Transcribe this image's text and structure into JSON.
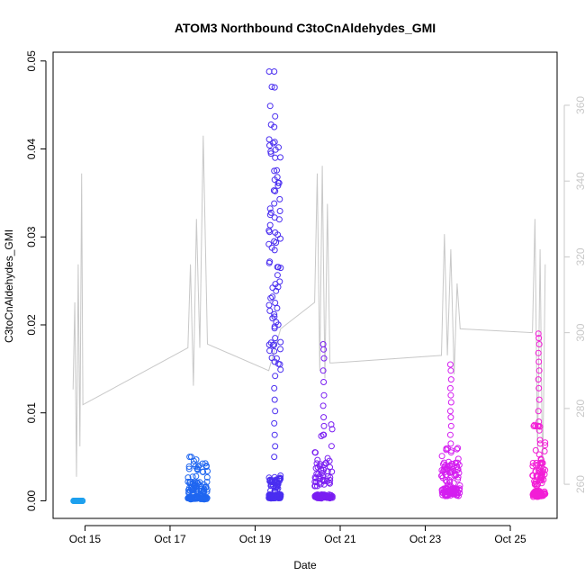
{
  "chart_data": {
    "type": "scatter",
    "title": "ATOM3 Northbound C3toCnAldehydes_GMI",
    "xlabel": "Date",
    "ylabel": "C3toCnAldehydes_GMI",
    "x_tick_labels": [
      "Oct 15",
      "Oct 17",
      "Oct 19",
      "Oct 21",
      "Oct 23",
      "Oct 25"
    ],
    "x_ticks_day": [
      15,
      17,
      19,
      21,
      23,
      25
    ],
    "xlim_day": [
      14.25,
      26.1
    ],
    "ylim": [
      -0.002,
      0.051
    ],
    "y_ticks": [
      "0.00",
      "0.01",
      "0.02",
      "0.03",
      "0.04",
      "0.05"
    ],
    "y2_ticks": [
      "260",
      "280",
      "300",
      "320",
      "340",
      "360"
    ],
    "y2lim": [
      251,
      374
    ],
    "right_axis_color": "#c8c8c8",
    "line_color": "#c8c8c8",
    "series": [
      {
        "color": "#1ea0ee",
        "day_start": 14.72,
        "day_end": 14.95,
        "min": 0.0,
        "max": 0.0002,
        "clusters": [
          [
            0.0,
            40
          ]
        ],
        "outliers": []
      },
      {
        "color": "#1f66f0",
        "day_start": 17.42,
        "day_end": 17.88,
        "min": 0.0,
        "max": 0.005,
        "clusters": [
          [
            0.0003,
            60
          ],
          [
            0.0015,
            40
          ],
          [
            0.003,
            20
          ],
          [
            0.0045,
            12
          ]
        ],
        "outliers": []
      },
      {
        "color": "#4a2ef0",
        "day_start": 19.32,
        "day_end": 19.6,
        "min": 0.0,
        "max": 0.0488,
        "clusters": [
          [
            0.0005,
            80
          ],
          [
            0.002,
            40
          ],
          [
            0.026,
            40
          ],
          [
            0.034,
            25
          ]
        ],
        "outliers": [
          0.0488,
          0.047,
          0.0437,
          0.0425,
          0.0408,
          0.039,
          0.0375,
          0.0365,
          0.0352,
          0.0338,
          0.0322,
          0.0305,
          0.0295,
          0.0285,
          0.0225,
          0.0212,
          0.0198,
          0.0185,
          0.017,
          0.0158,
          0.0142,
          0.0128,
          0.0115,
          0.0102,
          0.0088,
          0.0075,
          0.0062,
          0.005
        ]
      },
      {
        "color": "#7a1ef2",
        "day_start": 20.4,
        "day_end": 20.82,
        "min": 0.0,
        "max": 0.0178,
        "clusters": [
          [
            0.0005,
            70
          ],
          [
            0.003,
            35
          ],
          [
            0.006,
            15
          ]
        ],
        "outliers": [
          0.0178,
          0.0172,
          0.0162,
          0.0148,
          0.0135,
          0.012,
          0.0108,
          0.0095,
          0.0085,
          0.0075
        ]
      },
      {
        "color": "#d41ef0",
        "day_start": 23.38,
        "day_end": 23.82,
        "min": 0.0,
        "max": 0.0155,
        "clusters": [
          [
            0.001,
            70
          ],
          [
            0.003,
            40
          ],
          [
            0.0045,
            20
          ]
        ],
        "outliers": [
          0.0155,
          0.0148,
          0.0138,
          0.0128,
          0.012,
          0.0112,
          0.0102,
          0.0095,
          0.0085,
          0.0075,
          0.0065,
          0.0055
        ]
      },
      {
        "color": "#f21ed6",
        "day_start": 25.52,
        "day_end": 25.82,
        "min": 0.0,
        "max": 0.019,
        "clusters": [
          [
            0.0008,
            70
          ],
          [
            0.003,
            40
          ],
          [
            0.006,
            20
          ]
        ],
        "outliers": [
          0.019,
          0.0185,
          0.0178,
          0.0168,
          0.0158,
          0.0148,
          0.0138,
          0.0128,
          0.0115,
          0.0102,
          0.009,
          0.008
        ]
      }
    ],
    "secondary_line": {
      "days": [
        14.72,
        14.76,
        14.8,
        14.84,
        14.88,
        14.92,
        14.95,
        17.42,
        17.48,
        17.55,
        17.62,
        17.7,
        17.78,
        17.88,
        19.32,
        19.6,
        20.4,
        20.46,
        20.52,
        20.58,
        20.64,
        20.7,
        20.76,
        20.82,
        23.38,
        23.45,
        23.52,
        23.6,
        23.68,
        23.75,
        23.82,
        25.52,
        25.58,
        25.64,
        25.7,
        25.76,
        25.82
      ],
      "values": [
        285,
        308,
        262,
        318,
        270,
        342,
        281,
        296,
        318,
        286,
        330,
        296,
        352,
        297,
        290,
        301,
        308,
        342,
        290,
        344,
        288,
        334,
        292,
        292,
        294,
        326,
        294,
        322,
        289,
        313,
        301,
        300,
        330,
        268,
        322,
        260,
        318
      ]
    }
  }
}
